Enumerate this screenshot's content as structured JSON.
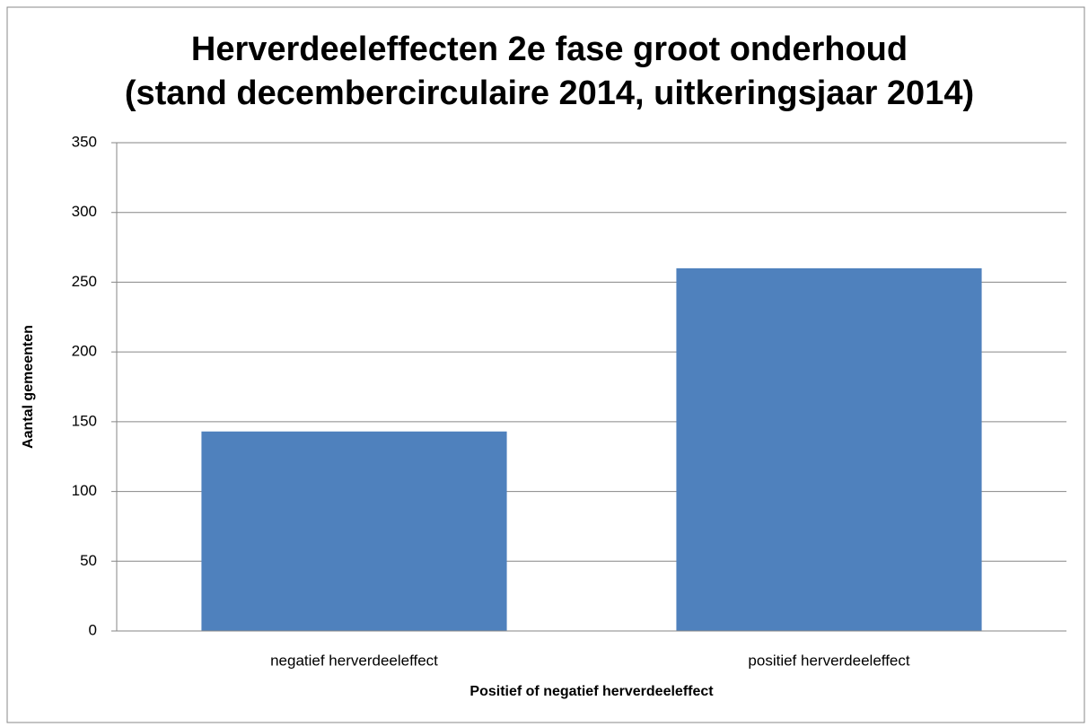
{
  "chart_data": {
    "type": "bar",
    "title": [
      "Herverdeeleffecten 2e fase groot onderhoud",
      "(stand decembercirculaire 2014, uitkeringsjaar 2014)"
    ],
    "x_label": "Positief of negatief herverdeeleffect",
    "y_label": "Aantal gemeenten",
    "categories": [
      "negatief herverdeeleffect",
      "positief herverdeeleffect"
    ],
    "values": [
      143,
      260
    ],
    "color": "#4f81bd",
    "ylim": [
      0,
      350
    ],
    "yticks": [
      0,
      50,
      100,
      150,
      200,
      250,
      300,
      350
    ],
    "grid": true
  }
}
